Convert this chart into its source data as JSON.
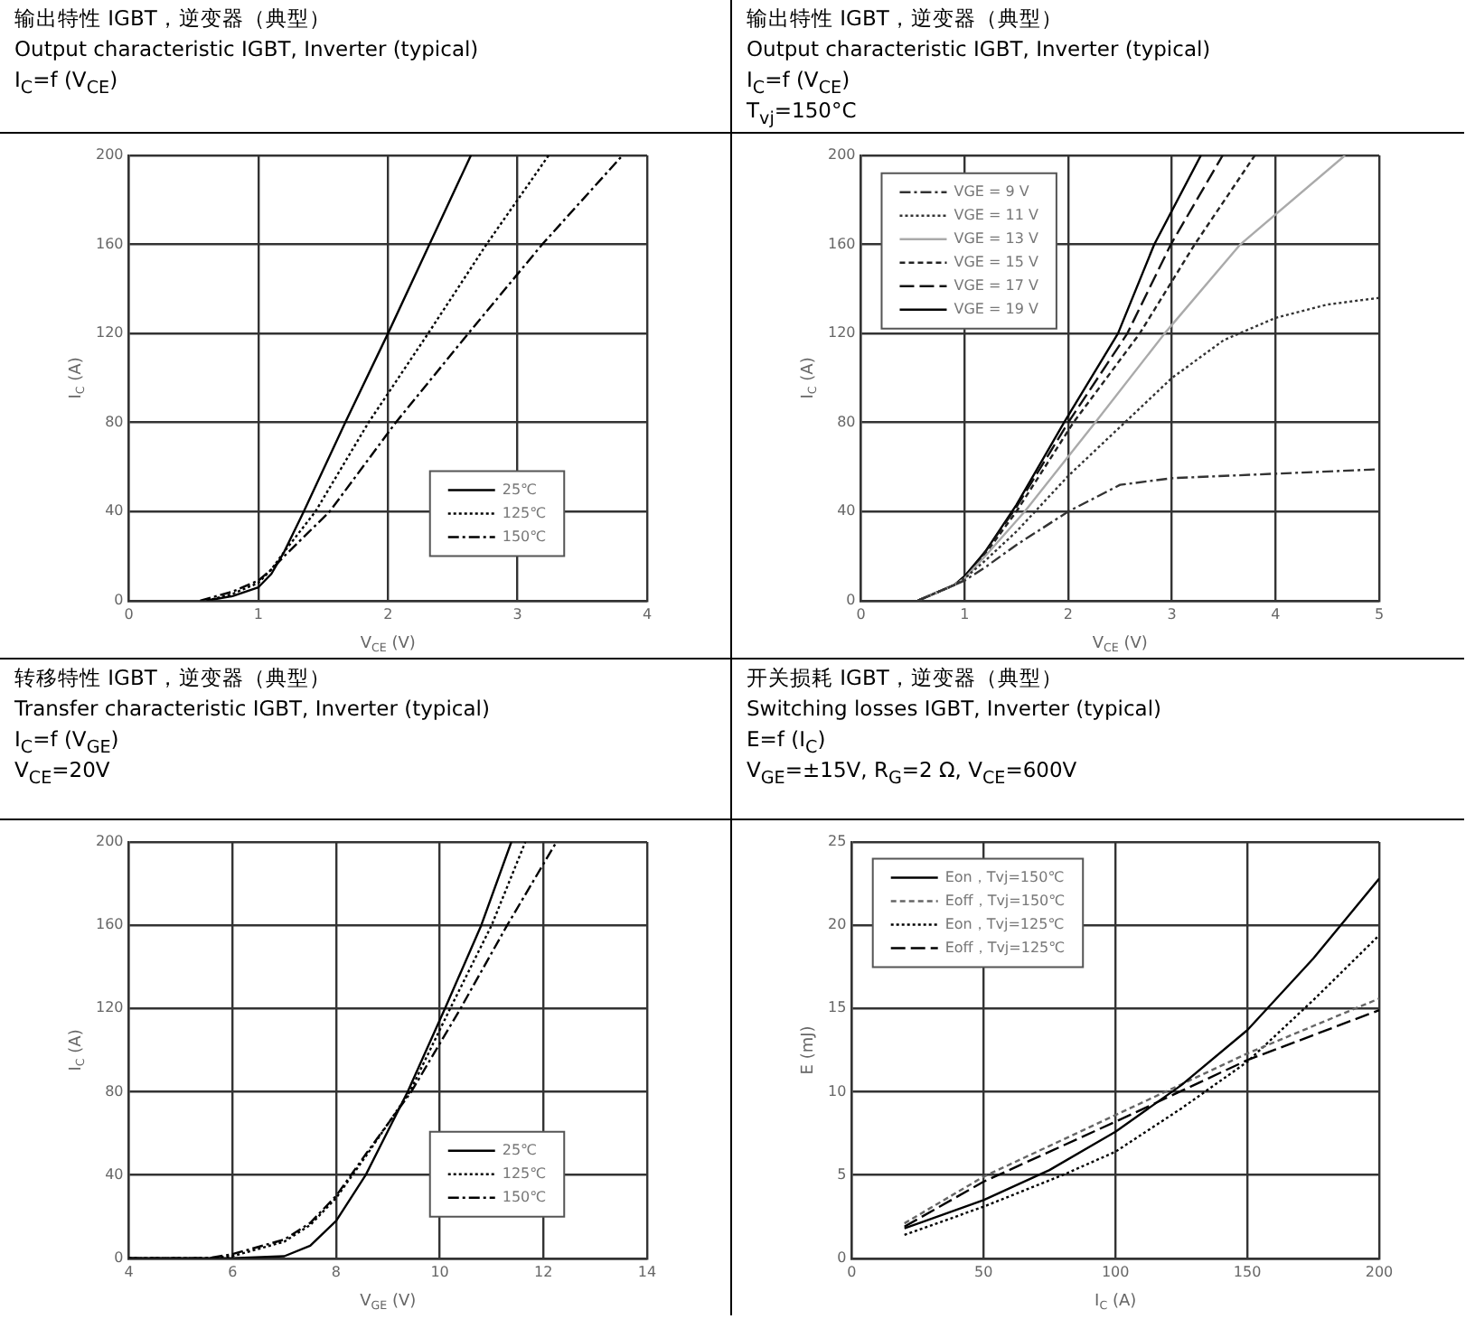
{
  "chart_data": [
    {
      "type": "line",
      "title": "输出特性 IGBT，逆变器（典型）",
      "subtitle": "Output characteristic IGBT, Inverter (typical)",
      "annotations": [
        "I$_{C}$=f (V$_{CE}$)"
      ],
      "xlabel": "V$_{CE}$ (V)",
      "ylabel": "I$_{C}$ (A)",
      "xlim": [
        0,
        4
      ],
      "xticks": [
        0,
        1,
        2,
        3,
        4
      ],
      "ylim": [
        0,
        200
      ],
      "yticks": [
        0,
        40,
        80,
        120,
        160,
        200
      ],
      "grid": true,
      "legend": "bottom right",
      "series": [
        {
          "name": "25℃",
          "color": "#000000",
          "line_style": "solid",
          "x": [
            0.6,
            0.8,
            1.0,
            1.1,
            1.2,
            1.35,
            1.67,
            2.0,
            2.32,
            2.64
          ],
          "values": [
            0,
            2,
            6,
            12,
            22,
            40,
            80,
            120,
            160,
            200
          ]
        },
        {
          "name": "125℃",
          "color": "#000000",
          "line_style": "dotted",
          "x": [
            0.6,
            0.8,
            1.0,
            1.1,
            1.2,
            1.44,
            1.85,
            2.31,
            2.76,
            3.24
          ],
          "values": [
            0,
            3,
            8,
            14,
            22,
            40,
            80,
            120,
            160,
            200
          ]
        },
        {
          "name": "150℃",
          "color": "#000000",
          "line_style": "dashdot",
          "x": [
            0.55,
            0.8,
            1.0,
            1.1,
            1.2,
            1.55,
            2.06,
            2.62,
            3.19,
            3.81
          ],
          "values": [
            0,
            4,
            9,
            14,
            20,
            40,
            80,
            120,
            160,
            200
          ]
        }
      ]
    },
    {
      "type": "line",
      "title": "输出特性 IGBT，逆变器（典型）",
      "subtitle": "Output characteristic IGBT, Inverter (typical)",
      "annotations": [
        "I$_{C}$=f (V$_{CE}$)",
        "T$_{vj}$=150°C"
      ],
      "xlabel": "V$_{CE}$ (V)",
      "ylabel": "I$_{C}$ (A)",
      "xlim": [
        0,
        5
      ],
      "xticks": [
        0,
        1,
        2,
        3,
        4,
        5
      ],
      "ylim": [
        0,
        200
      ],
      "yticks": [
        0,
        40,
        80,
        120,
        160,
        200
      ],
      "grid": true,
      "legend": "top left",
      "series": [
        {
          "name": "VGE = 9 V",
          "color": "#333333",
          "line_style": "dashdot",
          "x": [
            0.55,
            0.9,
            1.0,
            1.2,
            1.5,
            2.0,
            2.5,
            3.0,
            4.0,
            5.0
          ],
          "values": [
            0,
            7,
            9,
            15,
            25,
            40,
            52,
            55,
            57,
            59
          ]
        },
        {
          "name": "VGE = 11 V",
          "color": "#333333",
          "line_style": "dotted",
          "x": [
            0.55,
            0.9,
            1.0,
            1.2,
            1.5,
            2.0,
            2.5,
            3.0,
            3.5,
            4.0,
            4.5,
            5.0
          ],
          "values": [
            0,
            7,
            10,
            18,
            31,
            56,
            78,
            100,
            117,
            127,
            133,
            136
          ]
        },
        {
          "name": "VGE = 13 V",
          "color": "#aaaaaa",
          "line_style": "solid",
          "x": [
            0.55,
            0.9,
            1.0,
            1.2,
            1.58,
            2.26,
            2.93,
            3.66,
            4.67
          ],
          "values": [
            0,
            7,
            10,
            20,
            40,
            80,
            120,
            160,
            200
          ]
        },
        {
          "name": "VGE = 15 V",
          "color": "#222222",
          "line_style": "dashed",
          "x": [
            0.55,
            0.9,
            1.0,
            1.2,
            1.5,
            2.05,
            2.69,
            3.22,
            3.8
          ],
          "values": [
            0,
            7,
            10,
            21,
            40,
            80,
            120,
            160,
            200
          ]
        },
        {
          "name": "VGE = 17 V",
          "color": "#111111",
          "line_style": "longdash",
          "x": [
            0.55,
            0.9,
            1.0,
            1.2,
            1.5,
            2.0,
            2.57,
            2.99,
            3.49
          ],
          "values": [
            0,
            7,
            10,
            22,
            42,
            80,
            120,
            160,
            200
          ]
        },
        {
          "name": "VGE = 19 V",
          "color": "#000000",
          "line_style": "solid",
          "x": [
            0.55,
            0.9,
            1.0,
            1.2,
            1.5,
            1.96,
            2.48,
            2.83,
            3.28
          ],
          "values": [
            0,
            7,
            11,
            22,
            43,
            80,
            120,
            160,
            200
          ]
        }
      ]
    },
    {
      "type": "line",
      "title": "转移特性 IGBT，逆变器（典型）",
      "subtitle": "Transfer characteristic IGBT, Inverter (typical)",
      "annotations": [
        "I$_{C}$=f (V$_{GE}$)",
        "V$_{CE}$=20V"
      ],
      "xlabel": "V$_{GE}$ (V)",
      "ylabel": "I$_{C}$ (A)",
      "xlim": [
        4,
        14
      ],
      "xticks": [
        4,
        6,
        8,
        10,
        12,
        14
      ],
      "ylim": [
        0,
        200
      ],
      "yticks": [
        0,
        40,
        80,
        120,
        160,
        200
      ],
      "grid": true,
      "legend": "bottom right",
      "series": [
        {
          "name": "25℃",
          "color": "#000000",
          "line_style": "solid",
          "x": [
            4,
            6,
            7,
            7.5,
            8,
            8.57,
            9.38,
            10.1,
            10.8,
            11.38
          ],
          "values": [
            0,
            0,
            1,
            6,
            18,
            40,
            80,
            120,
            160,
            200
          ]
        },
        {
          "name": "125℃",
          "color": "#000000",
          "line_style": "dotted",
          "x": [
            4,
            5.5,
            6,
            7,
            7.5,
            8,
            8.6,
            9.42,
            10.2,
            11.0,
            11.65
          ],
          "values": [
            0,
            0,
            1,
            8,
            16,
            29,
            50,
            80,
            120,
            160,
            200
          ]
        },
        {
          "name": "150℃",
          "color": "#000000",
          "line_style": "dashdot",
          "x": [
            4,
            5.5,
            6,
            7,
            7.5,
            8,
            8.6,
            9.45,
            10.4,
            11.3,
            12.25
          ],
          "values": [
            0,
            0,
            2,
            9,
            17,
            30,
            51,
            80,
            120,
            160,
            200
          ]
        }
      ]
    },
    {
      "type": "line",
      "title": "开关损耗 IGBT，逆变器（典型）",
      "subtitle": "Switching losses IGBT, Inverter (typical)",
      "annotations": [
        "E=f (I$_{C}$)",
        "V$_{GE}$=±15V, R$_{G}$=2 Ω, V$_{CE}$=600V"
      ],
      "xlabel": "I$_{C}$ (A)",
      "ylabel": "E (mJ)",
      "xlim": [
        0,
        200
      ],
      "xticks": [
        0,
        50,
        100,
        150,
        200
      ],
      "ylim": [
        0,
        25
      ],
      "yticks": [
        0,
        5,
        10,
        15,
        20,
        25
      ],
      "grid": true,
      "legend": "top left",
      "series": [
        {
          "name": "Eon，Tvj=150℃",
          "color": "#000000",
          "line_style": "solid",
          "x": [
            20,
            50,
            75,
            100,
            125,
            150,
            175,
            200
          ],
          "values": [
            1.8,
            3.5,
            5.3,
            7.6,
            10.4,
            13.7,
            18,
            22.8
          ]
        },
        {
          "name": "Eoff，Tvj=150℃",
          "color": "#666666",
          "line_style": "dashed",
          "x": [
            20,
            50,
            100,
            150,
            200
          ],
          "values": [
            2.1,
            4.9,
            8.6,
            12.3,
            15.6
          ]
        },
        {
          "name": "Eon，Tvj=125℃",
          "color": "#000000",
          "line_style": "dotted",
          "x": [
            20,
            50,
            80,
            100,
            125,
            150,
            175,
            200
          ],
          "values": [
            1.4,
            3.1,
            5,
            6.4,
            9,
            11.8,
            15.5,
            19.4
          ]
        },
        {
          "name": "Eoff，Tvj=125℃",
          "color": "#000000",
          "line_style": "longdash",
          "x": [
            20,
            50,
            100,
            150,
            200
          ],
          "values": [
            1.9,
            4.6,
            8.2,
            11.9,
            14.9
          ]
        }
      ]
    }
  ]
}
